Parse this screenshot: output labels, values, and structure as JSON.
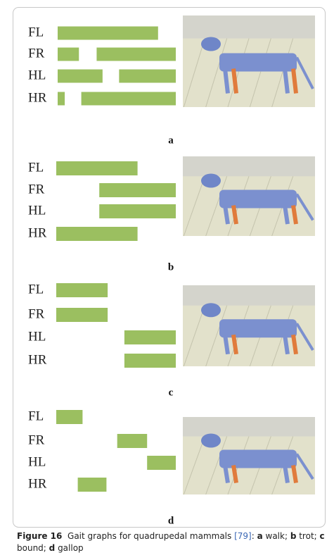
{
  "figure": {
    "bar_color": "#9bbf60",
    "panels": [
      {
        "label": "a",
        "rows": [
          {
            "leg": "FL",
            "stance": [
              [
                0,
                85
              ]
            ]
          },
          {
            "leg": "FR",
            "stance": [
              [
                0,
                18
              ],
              [
                33,
                100
              ]
            ]
          },
          {
            "leg": "HL",
            "stance": [
              [
                0,
                38
              ],
              [
                52,
                100
              ]
            ]
          },
          {
            "leg": "HR",
            "stance": [
              [
                0,
                6
              ],
              [
                20,
                100
              ]
            ]
          }
        ]
      },
      {
        "label": "b",
        "rows": [
          {
            "leg": "FL",
            "stance": [
              [
                0,
                68
              ]
            ]
          },
          {
            "leg": "FR",
            "stance": [
              [
                36,
                100
              ]
            ]
          },
          {
            "leg": "HL",
            "stance": [
              [
                36,
                100
              ]
            ]
          },
          {
            "leg": "HR",
            "stance": [
              [
                0,
                68
              ]
            ]
          }
        ]
      },
      {
        "label": "c",
        "rows": [
          {
            "leg": "FL",
            "stance": [
              [
                0,
                43
              ]
            ]
          },
          {
            "leg": "FR",
            "stance": [
              [
                0,
                43
              ]
            ]
          },
          {
            "leg": "HL",
            "stance": [
              [
                57,
                100
              ]
            ]
          },
          {
            "leg": "HR",
            "stance": [
              [
                57,
                100
              ]
            ]
          }
        ]
      },
      {
        "label": "d",
        "rows": [
          {
            "leg": "FL",
            "stance": [
              [
                0,
                22
              ]
            ]
          },
          {
            "leg": "FR",
            "stance": [
              [
                51,
                76
              ]
            ]
          },
          {
            "leg": "HL",
            "stance": [
              [
                76,
                100
              ]
            ]
          },
          {
            "leg": "HR",
            "stance": [
              [
                18,
                42
              ]
            ]
          }
        ]
      }
    ]
  },
  "caption": {
    "label": "Figure 16",
    "parts": [
      "Gait graphs for quadrupedal mammals ",
      "[79]",
      ": ",
      "a",
      " walk; ",
      "b",
      " trot; ",
      "c",
      " bound; ",
      "d",
      " gallop"
    ]
  }
}
